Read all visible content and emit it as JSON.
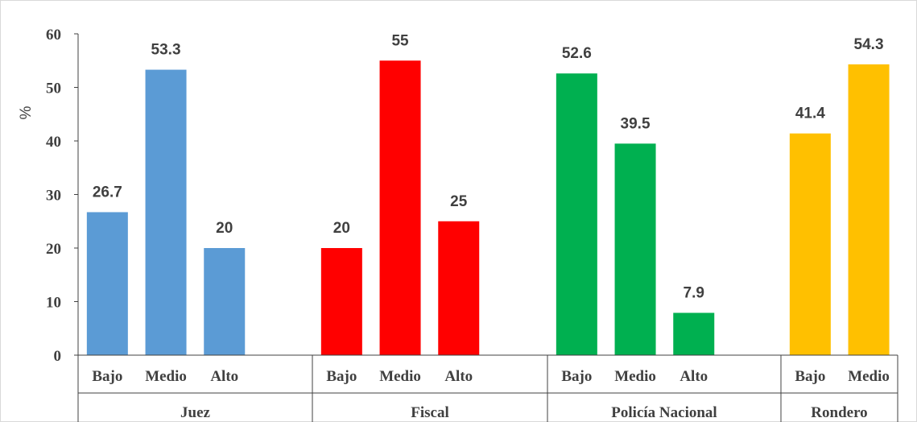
{
  "chart_data": {
    "type": "bar",
    "ylabel": "%",
    "ylim": [
      0,
      60
    ],
    "yticks": [
      0,
      10,
      20,
      30,
      40,
      50,
      60
    ],
    "grid": false,
    "legend": "none",
    "groups": [
      {
        "name": "Juez",
        "color": "#5B9BD5",
        "categories": [
          "Bajo",
          "Medio",
          "Alto"
        ],
        "values": [
          26.7,
          53.3,
          20
        ],
        "labels": [
          "26.7",
          "53.3",
          "20"
        ]
      },
      {
        "name": "Fiscal",
        "color": "#FF0000",
        "categories": [
          "Bajo",
          "Medio",
          "Alto"
        ],
        "values": [
          20,
          55,
          25
        ],
        "labels": [
          "20",
          "55",
          "25"
        ]
      },
      {
        "name": "Policía Nacional",
        "color": "#00B050",
        "categories": [
          "Bajo",
          "Medio",
          "Alto"
        ],
        "values": [
          52.6,
          39.5,
          7.9
        ],
        "labels": [
          "52.6",
          "39.5",
          "7.9"
        ]
      },
      {
        "name": "Rondero",
        "color": "#FFC000",
        "categories": [
          "Bajo",
          "Medio"
        ],
        "values": [
          41.4,
          54.3
        ],
        "labels": [
          "41.4",
          "54.3"
        ]
      }
    ]
  }
}
